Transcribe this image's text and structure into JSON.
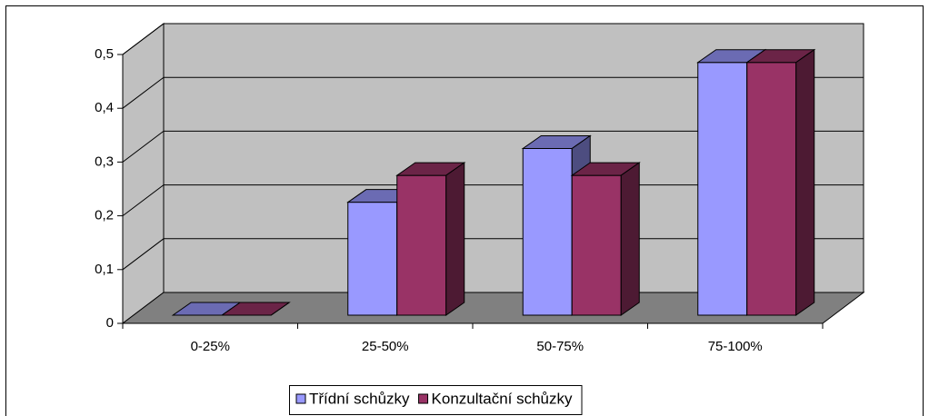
{
  "chart_data": {
    "type": "bar3d",
    "categories": [
      "0-25%",
      "25-50%",
      "50-75%",
      "75-100%"
    ],
    "series": [
      {
        "name": "Třídní schůzky",
        "color": "#9999ff",
        "values": [
          0,
          0.21,
          0.31,
          0.47
        ]
      },
      {
        "name": "Konzultační schůzky",
        "color": "#993366",
        "values": [
          0,
          0.26,
          0.26,
          0.47
        ]
      }
    ],
    "ylim": [
      0,
      0.5
    ],
    "yticks": [
      0,
      {
        "value": 0.1,
        "label": "0,1"
      },
      {
        "value": 0.2,
        "label": "0,2"
      },
      {
        "value": 0.3,
        "label": "0,3"
      },
      {
        "value": 0.4,
        "label": "0,4"
      },
      {
        "value": 0.5,
        "label": "0,5"
      }
    ],
    "grid": true,
    "legend": "bottom"
  }
}
